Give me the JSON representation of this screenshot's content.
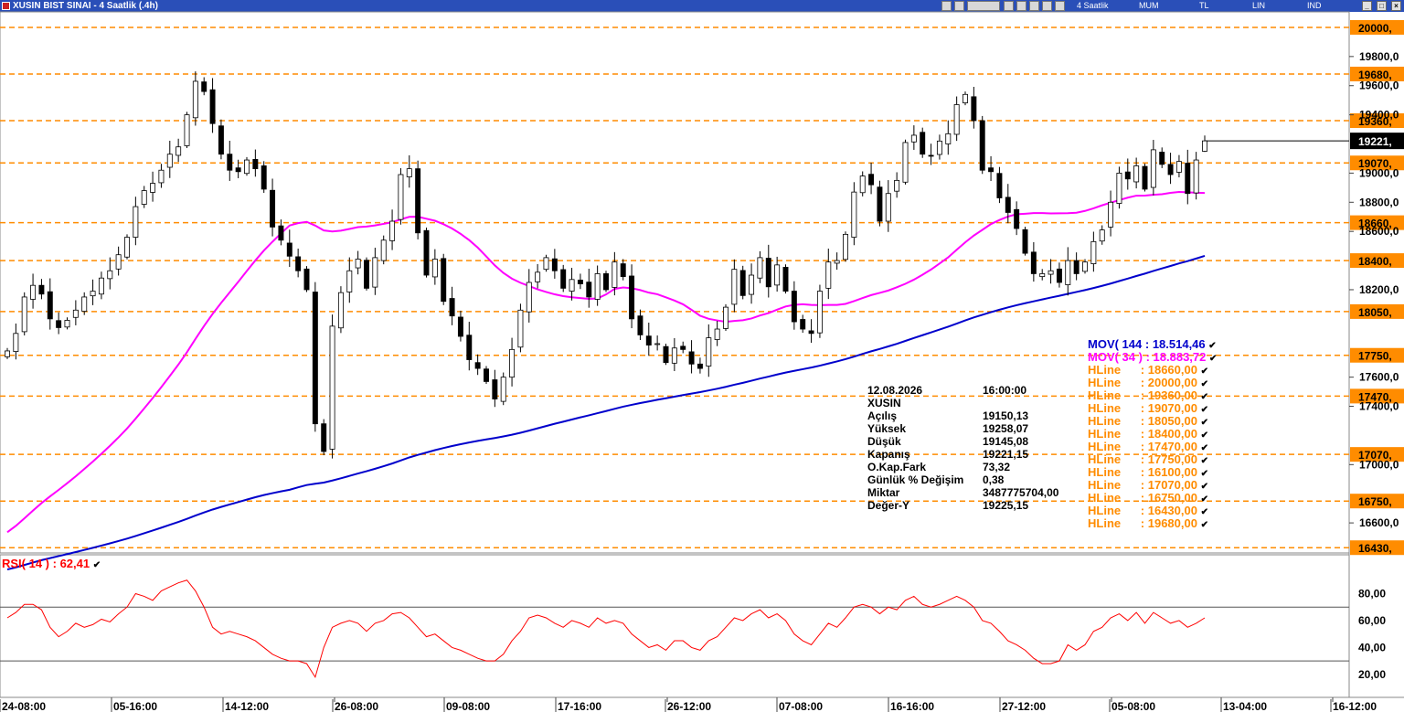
{
  "window": {
    "title": "XUSIN BIST SINAI - 4 Saatlik (.4h)",
    "toolbar_items": [
      "4 Saatlik",
      "MUM",
      "TL",
      "LIN",
      "IND"
    ],
    "window_buttons": [
      "_",
      "□",
      "×"
    ]
  },
  "colors": {
    "candle_up": "#ffffff",
    "candle_down": "#000000",
    "mov144": "#0000cc",
    "mov34": "#ff00ff",
    "hline": "#ff8c00",
    "rsi": "#ff0000",
    "hline_label_bg": "#ff8c00",
    "price_label_bg": "#000000"
  },
  "chart_data": {
    "type": "candlestick",
    "ylim": [
      16400,
      20100
    ],
    "y_ticks": [
      "19800,0",
      "19600,0",
      "19400,0",
      "19000,0",
      "18800,0",
      "18600,0",
      "18200,0",
      "17600,0",
      "17400,0",
      "17000,0",
      "16600,0"
    ],
    "x_ticks": [
      "24-08:00",
      "05-16:00",
      "14-12:00",
      "26-08:00",
      "09-08:00",
      "17-16:00",
      "26-12:00",
      "07-08:00",
      "16-16:00",
      "27-12:00",
      "05-08:00",
      "13-04:00",
      "16-12:00"
    ],
    "current_price_label": "19221,",
    "current_price": 19221.15,
    "hlines": [
      {
        "value": 20000,
        "label": "20000,"
      },
      {
        "value": 19680,
        "label": "19680,"
      },
      {
        "value": 19360,
        "label": "19360,"
      },
      {
        "value": 19070,
        "label": "19070,"
      },
      {
        "value": 18660,
        "label": "18660,"
      },
      {
        "value": 18400,
        "label": "18400,"
      },
      {
        "value": 18050,
        "label": "18050,"
      },
      {
        "value": 17750,
        "label": "17750,"
      },
      {
        "value": 17470,
        "label": "17470,"
      },
      {
        "value": 17070,
        "label": "17070,"
      },
      {
        "value": 16750,
        "label": "16750,"
      },
      {
        "value": 16430,
        "label": "16430,"
      }
    ],
    "closes": [
      17780,
      17900,
      18150,
      18230,
      18170,
      18000,
      17940,
      17990,
      18060,
      18150,
      18190,
      18280,
      18330,
      18440,
      18560,
      18770,
      18880,
      18930,
      19020,
      19130,
      19180,
      19400,
      19630,
      19560,
      19340,
      19130,
      19020,
      19010,
      19090,
      19030,
      18890,
      18630,
      18540,
      18430,
      18330,
      18200,
      17280,
      17090,
      17950,
      18180,
      18330,
      18410,
      18210,
      18420,
      18540,
      18670,
      18990,
      19030,
      18590,
      18300,
      18410,
      18120,
      18020,
      17880,
      17720,
      17660,
      17570,
      17450,
      17600,
      17790,
      18060,
      18250,
      18320,
      18420,
      18330,
      18210,
      18270,
      18240,
      18150,
      18310,
      18200,
      18390,
      18290,
      18000,
      17890,
      17820,
      17830,
      17700,
      17800,
      17790,
      17690,
      17660,
      17870,
      17930,
      18080,
      18340,
      18160,
      18300,
      18420,
      18220,
      18370,
      18190,
      17980,
      17930,
      17900,
      18190,
      18390,
      18400,
      18580,
      18870,
      18980,
      18920,
      18670,
      18860,
      18950,
      19210,
      19260,
      19130,
      19120,
      19220,
      19270,
      19470,
      19540,
      19360,
      19020,
      19010,
      18830,
      18730,
      18620,
      18450,
      18310,
      18310,
      18330,
      18250,
      18400,
      18310,
      18390,
      18530,
      18610,
      18800,
      19000,
      18960,
      19050,
      18890,
      19160,
      19060,
      18990,
      19080,
      18860,
      19090,
      19221.15
    ],
    "mov34_label": "MOV( 34 ) :",
    "mov34_value": "18.883,72",
    "mov144_label": "MOV( 144 :",
    "mov144_value": "18.514,46",
    "hline_legend": [
      "18660,00",
      "20000,00",
      "19360,00",
      "19070,00",
      "18050,00",
      "18400,00",
      "17470,00",
      "17750,00",
      "16100,00",
      "17070,00",
      "16750,00",
      "16430,00",
      "19680,00"
    ],
    "hline_legend_label": "HLine",
    "rsi": {
      "label": "RSI( 14 ) : 62,41",
      "y_ticks": [
        "80,00",
        "60,00",
        "40,00",
        "20,00"
      ],
      "ylim": [
        5,
        100
      ],
      "levels": [
        70,
        30
      ],
      "values": [
        62,
        66,
        72,
        72,
        68,
        55,
        48,
        52,
        58,
        55,
        57,
        61,
        59,
        65,
        70,
        80,
        78,
        75,
        82,
        85,
        88,
        90,
        82,
        70,
        55,
        50,
        52,
        50,
        48,
        45,
        40,
        35,
        32,
        30,
        30,
        28,
        18,
        40,
        55,
        58,
        60,
        58,
        52,
        58,
        60,
        65,
        66,
        62,
        55,
        48,
        50,
        45,
        40,
        38,
        35,
        32,
        30,
        30,
        35,
        45,
        52,
        62,
        64,
        62,
        58,
        55,
        60,
        58,
        55,
        62,
        58,
        60,
        58,
        50,
        45,
        40,
        42,
        38,
        45,
        45,
        40,
        38,
        45,
        48,
        55,
        62,
        60,
        65,
        68,
        62,
        65,
        60,
        50,
        45,
        42,
        50,
        58,
        55,
        62,
        70,
        72,
        70,
        65,
        70,
        68,
        75,
        78,
        72,
        70,
        72,
        75,
        78,
        75,
        70,
        60,
        58,
        52,
        45,
        42,
        38,
        32,
        28,
        28,
        30,
        42,
        38,
        42,
        52,
        55,
        62,
        65,
        60,
        66,
        58,
        66,
        62,
        58,
        60,
        55,
        58,
        62
      ]
    }
  },
  "info_panel": {
    "date": "12.08.2026",
    "time": "16:00:00",
    "symbol": "XUSIN",
    "rows": [
      {
        "label": "Açılış",
        "value": "19150,13"
      },
      {
        "label": "Yüksek",
        "value": "19258,07"
      },
      {
        "label": "Düşük",
        "value": "19145,08"
      },
      {
        "label": "Kapanış",
        "value": "19221,15"
      },
      {
        "label": "O.Kap.Fark",
        "value": "73,32"
      },
      {
        "label": "Günlük % Değişim",
        "value": "0,38"
      },
      {
        "label": "Miktar",
        "value": "3487775704,00"
      },
      {
        "label": "Değer-Y",
        "value": "19225,15"
      }
    ]
  }
}
